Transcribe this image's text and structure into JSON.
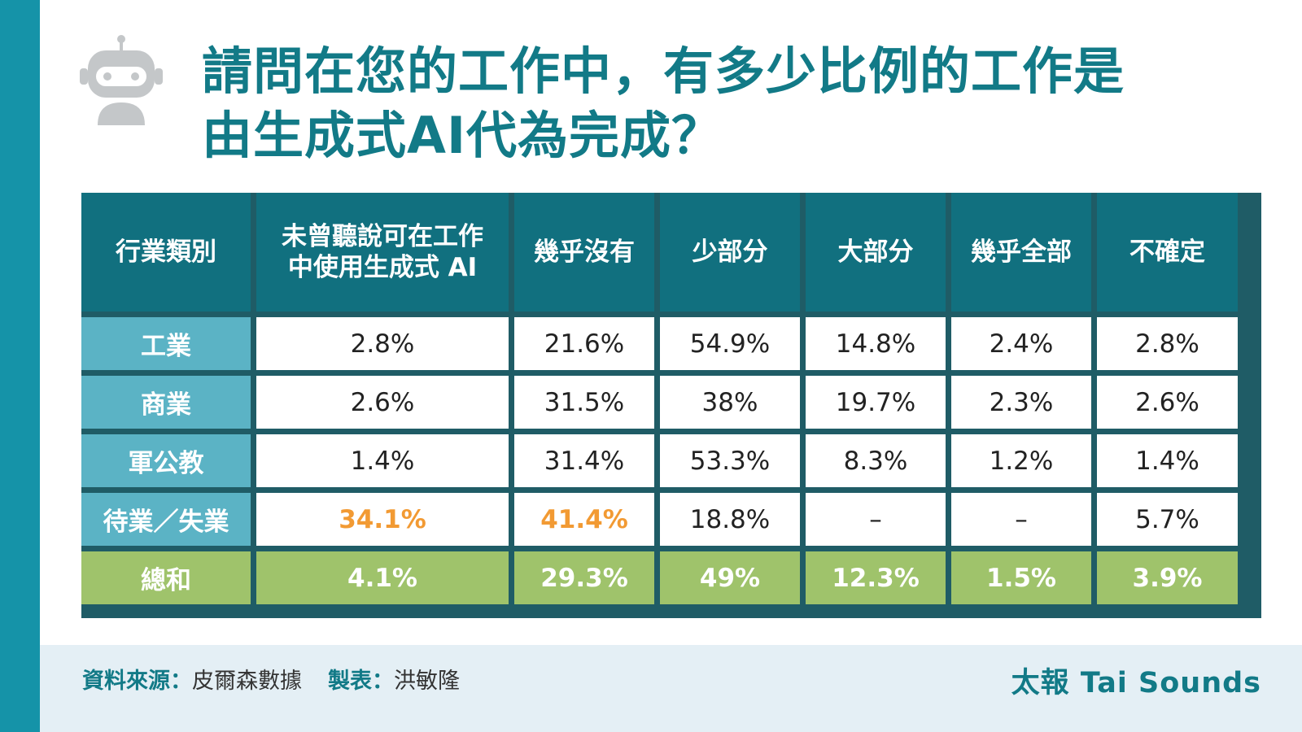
{
  "title_line1": "請問在您的工作中，有多少比例的工作是",
  "title_line2": "由生成式AI代為完成？",
  "icon": "robot-icon",
  "colors": {
    "accent": "#127a87",
    "header_bg": "#11707f",
    "row_label_bg": "#5bb3c5",
    "total_bg": "#9fc36b",
    "highlight": "#f29a33",
    "left_bar": "#1593a8"
  },
  "chart_data": {
    "type": "table",
    "columns": [
      "行業類別",
      "未曾聽說可在工作中使用生成式 AI",
      "幾乎沒有",
      "少部分",
      "大部分",
      "幾乎全部",
      "不確定"
    ],
    "rows": [
      {
        "label": "工業",
        "values": [
          "2.8%",
          "21.6%",
          "54.9%",
          "14.8%",
          "2.4%",
          "2.8%"
        ]
      },
      {
        "label": "商業",
        "values": [
          "2.6%",
          "31.5%",
          "38%",
          "19.7%",
          "2.3%",
          "2.6%"
        ]
      },
      {
        "label": "軍公教",
        "values": [
          "1.4%",
          "31.4%",
          "53.3%",
          "8.3%",
          "1.2%",
          "1.4%"
        ]
      },
      {
        "label": "待業／失業",
        "values": [
          "34.1%",
          "41.4%",
          "18.8%",
          "–",
          "–",
          "5.7%"
        ],
        "highlighted": [
          "34.1%",
          "41.4%"
        ]
      },
      {
        "label": "總和",
        "values": [
          "4.1%",
          "29.3%",
          "49%",
          "12.3%",
          "1.5%",
          "3.9%"
        ]
      }
    ]
  },
  "footer": {
    "source_key": "資料來源：",
    "source_value": "皮爾森數據",
    "maker_key": "製表：",
    "maker_value": "洪敏隆",
    "brand": "太報 Tai Sounds"
  }
}
